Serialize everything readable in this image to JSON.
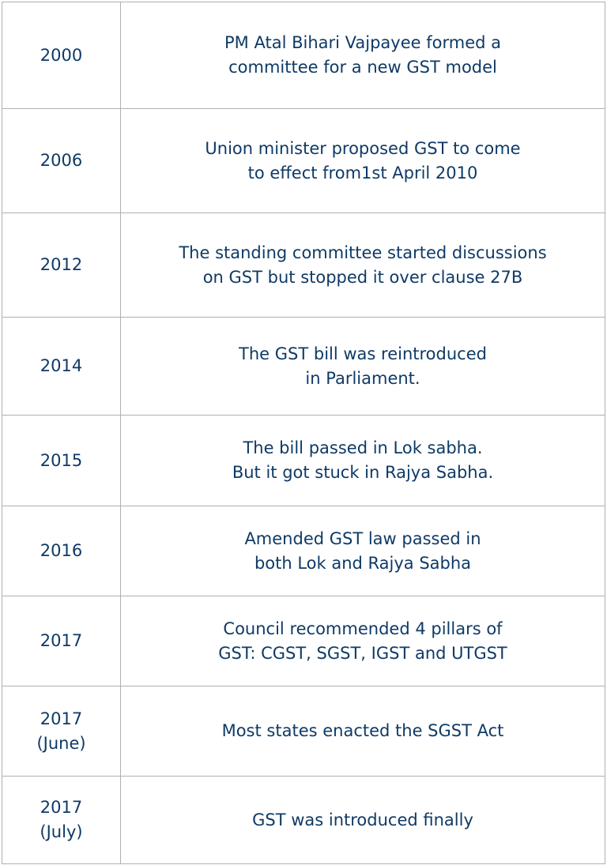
{
  "rows": [
    {
      "year": "2000",
      "event": [
        "PM Atal Bihari Vajpayee formed a",
        "committee for a new GST model"
      ]
    },
    {
      "year": "2006",
      "event": [
        "Union minister proposed GST to come",
        "to effect from1st April 2010"
      ]
    },
    {
      "year": "2012",
      "event": [
        "The standing committee started discussions",
        "on GST but stopped it over clause 27B"
      ]
    },
    {
      "year": "2014",
      "event": [
        "The GST bill was reintroduced",
        "in Parliament."
      ]
    },
    {
      "year": "2015",
      "event": [
        "The bill passed in Lok sabha.",
        "But it got stuck in Rajya Sabha."
      ]
    },
    {
      "year": "2016",
      "event": [
        "Amended GST law passed in",
        "both Lok and Rajya Sabha"
      ]
    },
    {
      "year": "2017",
      "event": [
        "Council recommended 4 pillars of",
        "GST: CGST, SGST, IGST and UTGST"
      ]
    },
    {
      "year": [
        "2017",
        "(June)"
      ],
      "event": [
        "Most states enacted the SGST Act"
      ]
    },
    {
      "year": [
        "2017",
        "(July)"
      ],
      "event": [
        "GST was introduced finally"
      ]
    }
  ],
  "colors": {
    "text": "#0f3a66",
    "border": "#b0b0b0"
  }
}
